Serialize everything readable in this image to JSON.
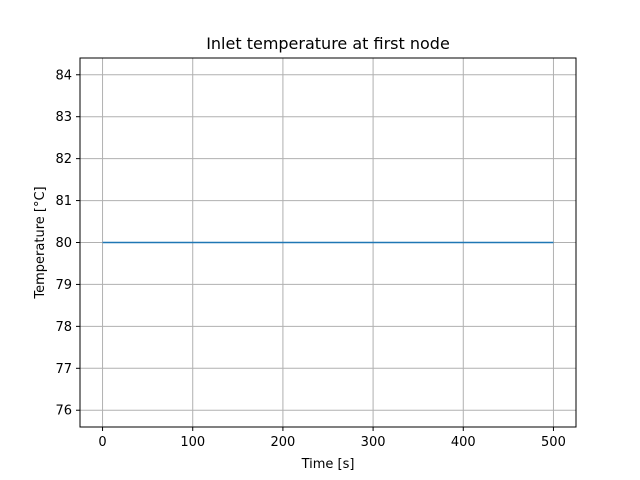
{
  "chart_data": {
    "type": "line",
    "title": "Inlet temperature at first node",
    "xlabel": "Time [s]",
    "ylabel": "Temperature [°C]",
    "xlim": [
      -25,
      525
    ],
    "ylim": [
      75.6,
      84.4
    ],
    "xticks": [
      0,
      100,
      200,
      300,
      400,
      500
    ],
    "yticks": [
      76,
      77,
      78,
      79,
      80,
      81,
      82,
      83,
      84
    ],
    "grid": true,
    "series": [
      {
        "color": "#1f77b4",
        "x": [
          0,
          100,
          200,
          300,
          400,
          500
        ],
        "y": [
          80,
          80,
          80,
          80,
          80,
          80
        ]
      }
    ]
  }
}
